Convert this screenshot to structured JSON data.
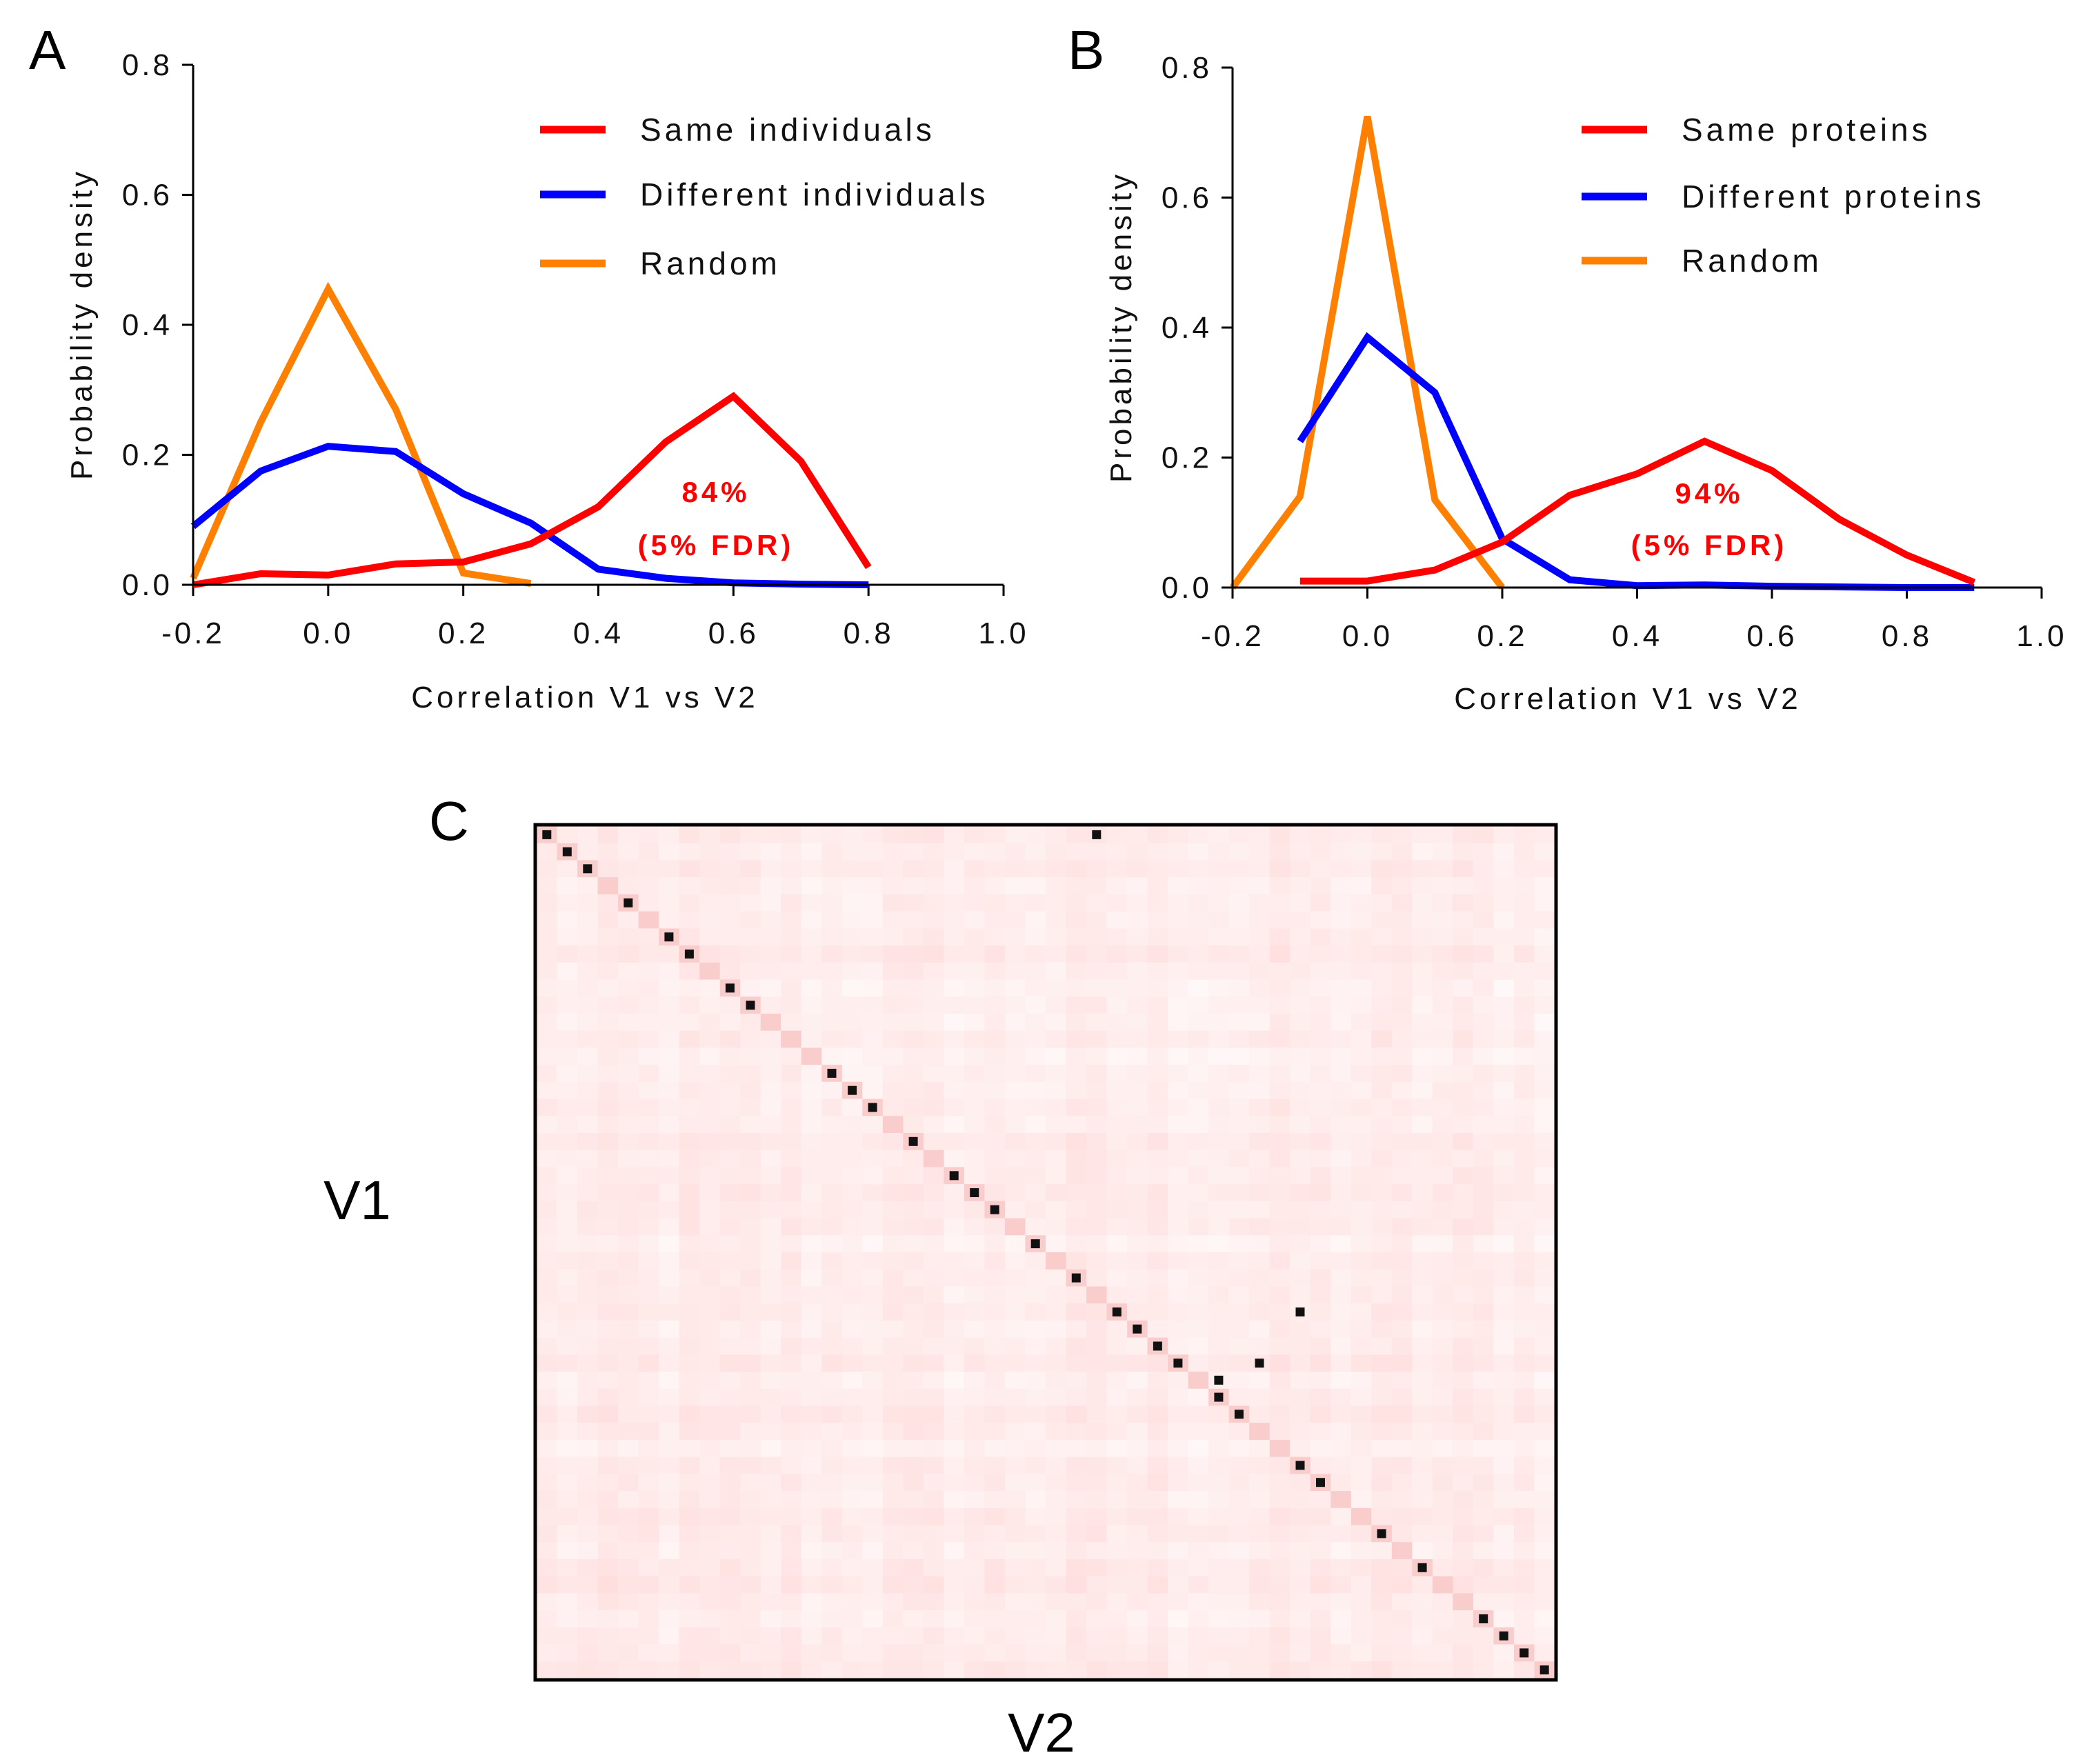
{
  "colors": {
    "same": "#ff0000",
    "different": "#0000ff",
    "random": "#ff8000",
    "annotation": "#ff0000"
  },
  "chart_data": [
    {
      "panel": "A",
      "type": "line",
      "xlabel": "Correlation V1 vs V2",
      "ylabel": "Probability density",
      "xlim": [
        -0.2,
        1.0
      ],
      "ylim": [
        0,
        0.8
      ],
      "x_ticks": [
        "-0.2",
        "0.0",
        "0.2",
        "0.4",
        "0.6",
        "0.8",
        "1.0"
      ],
      "y_ticks": [
        "0.0",
        "0.2",
        "0.4",
        "0.6",
        "0.8"
      ],
      "series": [
        {
          "name": "Same individuals",
          "color_key": "same",
          "x": [
            -0.2,
            -0.1,
            0.0,
            0.1,
            0.2,
            0.3,
            0.4,
            0.5,
            0.6,
            0.7,
            0.8
          ],
          "y": [
            0.0,
            0.017,
            0.015,
            0.032,
            0.035,
            0.063,
            0.12,
            0.22,
            0.29,
            0.19,
            0.027
          ]
        },
        {
          "name": "Different individuals",
          "color_key": "different",
          "x": [
            -0.2,
            -0.1,
            0.0,
            0.1,
            0.2,
            0.3,
            0.4,
            0.5,
            0.6,
            0.7,
            0.8
          ],
          "y": [
            0.09,
            0.175,
            0.213,
            0.205,
            0.14,
            0.095,
            0.024,
            0.01,
            0.003,
            0.001,
            0.0
          ]
        },
        {
          "name": "Random",
          "color_key": "random",
          "x": [
            -0.2,
            -0.1,
            0.0,
            0.1,
            0.2,
            0.3
          ],
          "y": [
            0.01,
            0.25,
            0.455,
            0.27,
            0.018,
            0.002
          ]
        }
      ],
      "annotation": [
        "84%",
        "(5% FDR)"
      ],
      "legend": "top-right"
    },
    {
      "panel": "B",
      "type": "line",
      "xlabel": "Correlation V1 vs V2",
      "ylabel": "Probability density",
      "xlim": [
        -0.2,
        1.0
      ],
      "ylim": [
        0,
        0.8
      ],
      "x_ticks": [
        "-0.2",
        "0.0",
        "0.2",
        "0.4",
        "0.6",
        "0.8",
        "1.0"
      ],
      "y_ticks": [
        "0.0",
        "0.2",
        "0.4",
        "0.6",
        "0.8"
      ],
      "series": [
        {
          "name": "Same proteins",
          "color_key": "same",
          "x": [
            -0.1,
            0.0,
            0.1,
            0.2,
            0.3,
            0.4,
            0.5,
            0.6,
            0.7,
            0.8,
            0.9
          ],
          "y": [
            0.01,
            0.01,
            0.027,
            0.07,
            0.142,
            0.175,
            0.225,
            0.18,
            0.105,
            0.05,
            0.008
          ]
        },
        {
          "name": "Different proteins",
          "color_key": "different",
          "x": [
            -0.1,
            0.0,
            0.1,
            0.2,
            0.3,
            0.4,
            0.5,
            0.6,
            0.7,
            0.8,
            0.9
          ],
          "y": [
            0.225,
            0.385,
            0.3,
            0.075,
            0.012,
            0.003,
            0.004,
            0.002,
            0.001,
            0.0,
            0.0
          ]
        },
        {
          "name": "Random",
          "color_key": "random",
          "x": [
            -0.2,
            -0.1,
            0.0,
            0.1,
            0.2
          ],
          "y": [
            0.0,
            0.14,
            0.725,
            0.135,
            0.0
          ]
        }
      ],
      "annotation": [
        "94%",
        "(5% FDR)"
      ],
      "legend": "top-right"
    },
    {
      "panel": "C",
      "type": "heatmap",
      "xlabel": "V2",
      "ylabel": "V1",
      "n_rows": 50,
      "n_cols": 50,
      "diagonal_dark": [
        0,
        1,
        2,
        4,
        6,
        7,
        9,
        10,
        14,
        15,
        16,
        18,
        20,
        21,
        22,
        24,
        26,
        28,
        29,
        30,
        31,
        33,
        34,
        37,
        38,
        41,
        43,
        46,
        47,
        48,
        49
      ],
      "off_diagonal_dark": [
        [
          0,
          27
        ],
        [
          28,
          37
        ],
        [
          32,
          33
        ],
        [
          31,
          35
        ]
      ]
    }
  ]
}
